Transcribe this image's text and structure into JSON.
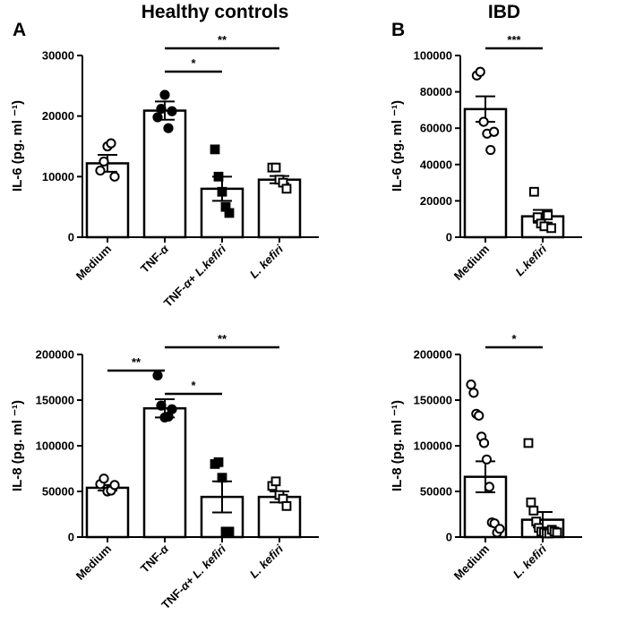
{
  "figure": {
    "panels": [
      {
        "letter": "A",
        "group_title": "Healthy controls"
      },
      {
        "letter": "B",
        "group_title": "IBD"
      }
    ]
  },
  "chart_data": [
    {
      "id": "hc-il6",
      "type": "bar",
      "group": "Healthy controls",
      "panel": "A",
      "ylabel": "IL-6 (pg. ml ⁻¹)",
      "ylim": [
        0,
        30000
      ],
      "yticks": [
        0,
        10000,
        20000,
        30000
      ],
      "categories": [
        "Medium",
        "TNF-α",
        "TNF-α+ L.kefiri",
        "L. kefiri"
      ],
      "cat_parts": [
        [
          {
            "t": "Medium",
            "i": false
          }
        ],
        [
          {
            "t": "TNF-",
            "i": false
          },
          {
            "t": "α",
            "i": true
          }
        ],
        [
          {
            "t": "TNF-",
            "i": false
          },
          {
            "t": "α",
            "i": true
          },
          {
            "t": "+ ",
            "i": false
          },
          {
            "t": "L.kefiri",
            "i": true
          }
        ],
        [
          {
            "t": "L. kefiri",
            "i": true
          }
        ]
      ],
      "means": [
        12200,
        20900,
        8000,
        9500
      ],
      "sem": [
        1400,
        1500,
        2000,
        600
      ],
      "markers": [
        "circle-open",
        "circle-filled",
        "square-filled",
        "square-open"
      ],
      "points": [
        [
          11000,
          12500,
          15000,
          15500,
          10000
        ],
        [
          19800,
          21200,
          23500,
          18000,
          20800
        ],
        [
          14500,
          10000,
          7500,
          5000,
          4000
        ],
        [
          11500,
          11500,
          9500,
          9000,
          8000
        ]
      ],
      "significance": [
        {
          "from": 1,
          "to": 3,
          "label": "**"
        },
        {
          "from": 1,
          "to": 2,
          "label": "*"
        }
      ]
    },
    {
      "id": "ibd-il6",
      "type": "bar",
      "group": "IBD",
      "panel": "B",
      "ylabel": "IL-6 (pg. ml ⁻¹)",
      "ylim": [
        0,
        100000
      ],
      "yticks": [
        0,
        20000,
        40000,
        60000,
        80000,
        100000
      ],
      "categories": [
        "Medium",
        "L.kefiri"
      ],
      "cat_parts": [
        [
          {
            "t": "Medium",
            "i": false
          }
        ],
        [
          {
            "t": "L.kefiri",
            "i": true
          }
        ]
      ],
      "means": [
        70500,
        11500
      ],
      "sem": [
        7000,
        3500
      ],
      "markers": [
        "circle-open",
        "square-open"
      ],
      "points": [
        [
          89000,
          91000,
          63500,
          57000,
          48000,
          58000
        ],
        [
          25000,
          11000,
          7500,
          6000,
          12000,
          5000
        ]
      ],
      "significance": [
        {
          "from": 0,
          "to": 1,
          "label": "***"
        }
      ]
    },
    {
      "id": "hc-il8",
      "type": "bar",
      "group": "Healthy controls",
      "panel": "A",
      "ylabel": "IL-8 (pg. ml ⁻¹)",
      "ylim": [
        0,
        200000
      ],
      "yticks": [
        0,
        50000,
        100000,
        150000,
        200000
      ],
      "categories": [
        "Medium",
        "TNF-α",
        "TNF-α+ L. kefiri",
        "L. kefiri"
      ],
      "cat_parts": [
        [
          {
            "t": "Medium",
            "i": false
          }
        ],
        [
          {
            "t": "TNF-",
            "i": false
          },
          {
            "t": "α",
            "i": true
          }
        ],
        [
          {
            "t": "TNF-",
            "i": false
          },
          {
            "t": "α",
            "i": true
          },
          {
            "t": "+ ",
            "i": false
          },
          {
            "t": "L. kefiri",
            "i": true
          }
        ],
        [
          {
            "t": "L. kefiri",
            "i": true
          }
        ]
      ],
      "means": [
        54000,
        141000,
        44000,
        44000
      ],
      "sem": [
        3000,
        10000,
        17000,
        6000
      ],
      "markers": [
        "circle-open",
        "circle-filled",
        "square-filled",
        "square-open"
      ],
      "points": [
        [
          58000,
          64000,
          50000,
          51000,
          57000
        ],
        [
          177000,
          144000,
          131000,
          132000,
          140000
        ],
        [
          80000,
          82000,
          65000,
          6000,
          6000
        ],
        [
          56000,
          61000,
          46000,
          42000,
          34000
        ]
      ],
      "significance": [
        {
          "from": 0,
          "to": 1,
          "label": "**"
        },
        {
          "from": 1,
          "to": 3,
          "label": "**"
        },
        {
          "from": 1,
          "to": 2,
          "label": "*"
        }
      ]
    },
    {
      "id": "ibd-il8",
      "type": "bar",
      "group": "IBD",
      "panel": "B",
      "ylabel": "IL-8 (pg. ml ⁻¹)",
      "ylim": [
        0,
        200000
      ],
      "yticks": [
        0,
        50000,
        100000,
        150000,
        200000
      ],
      "categories": [
        "Medium",
        "L. kefiri"
      ],
      "cat_parts": [
        [
          {
            "t": "Medium",
            "i": false
          }
        ],
        [
          {
            "t": "L. kefiri",
            "i": true
          }
        ]
      ],
      "means": [
        66000,
        19000
      ],
      "sem": [
        17000,
        8500
      ],
      "markers": [
        "circle-open",
        "square-open"
      ],
      "points": [
        [
          167000,
          158000,
          135000,
          133000,
          110000,
          103000,
          85000,
          55000,
          16000,
          15000,
          5000,
          9000
        ],
        [
          103000,
          38000,
          29000,
          17000,
          10000,
          6000,
          5000,
          4000,
          4000,
          8000,
          6000,
          5000
        ]
      ],
      "significance": [
        {
          "from": 0,
          "to": 1,
          "label": "*"
        }
      ]
    }
  ]
}
